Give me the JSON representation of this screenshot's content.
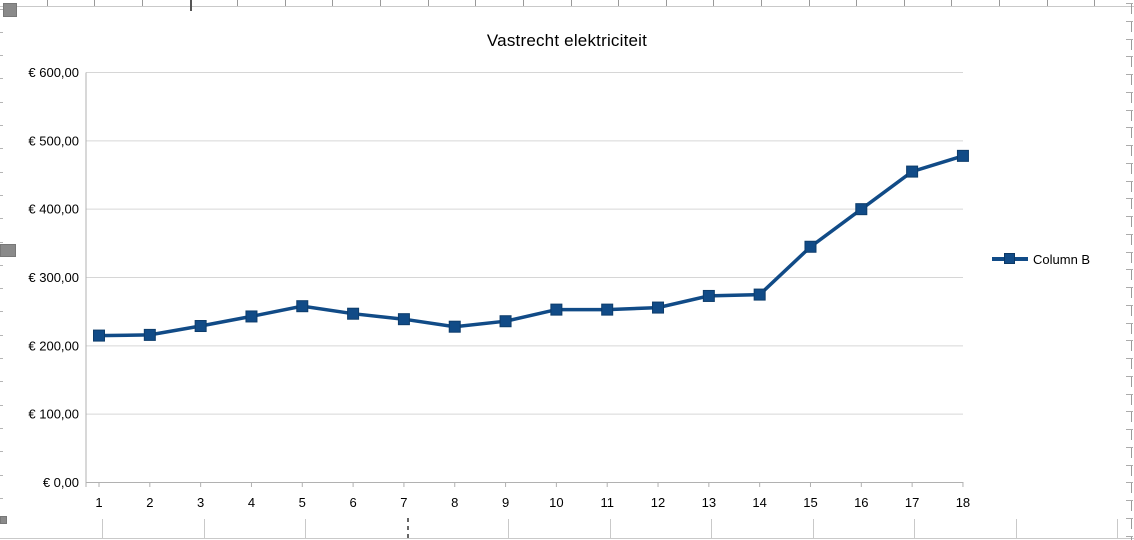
{
  "chart_data": {
    "type": "line",
    "title": "Vastrecht elektriciteit",
    "marker": "square",
    "grid": "horizontal-only",
    "legend_position": "right",
    "categories": [
      "1",
      "2",
      "3",
      "4",
      "5",
      "6",
      "7",
      "8",
      "9",
      "10",
      "11",
      "12",
      "13",
      "14",
      "15",
      "16",
      "17",
      "18"
    ],
    "series": [
      {
        "name": "Column B",
        "color": "#114b87",
        "marker_border": "#0d3c6b",
        "values": [
          215,
          216,
          229,
          243,
          258,
          247,
          239,
          228,
          236,
          253,
          253,
          256,
          273,
          275,
          345,
          400,
          455,
          478
        ]
      }
    ],
    "y_axis": {
      "min": 0,
      "max": 600,
      "tick_values": [
        0,
        100,
        200,
        300,
        400,
        500,
        600
      ],
      "tick_labels": [
        "€ 0,00",
        "€ 100,00",
        "€ 200,00",
        "€ 300,00",
        "€ 400,00",
        "€ 500,00",
        "€ 600,00"
      ]
    },
    "colors": {
      "gridline": "#d6d6d6",
      "axis": "#b1b1b1",
      "text": "#000000"
    }
  },
  "sheet": {
    "gridline_color": "#c9c9c9",
    "stub_color": "#999999",
    "handle_color": "#8a8a8a"
  }
}
